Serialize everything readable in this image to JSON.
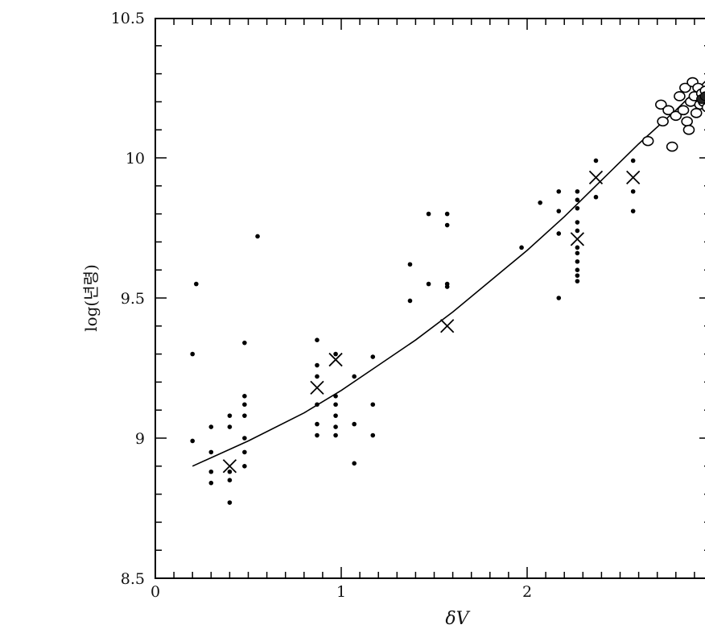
{
  "chart_data": {
    "type": "scatter",
    "title": "",
    "xlabel": "δV",
    "ylabel": "log(년령)",
    "xlim": [
      0,
      3
    ],
    "ylim": [
      8.5,
      10.5
    ],
    "x_ticks": [
      0,
      1,
      2
    ],
    "x_tick_labels": [
      "0",
      "1",
      "2"
    ],
    "y_ticks": [
      8.5,
      9,
      9.5,
      10,
      10.5
    ],
    "y_tick_labels": [
      "8.5",
      "9",
      "9.5",
      "10",
      "10.5"
    ],
    "x_minor_step": 0.1,
    "y_minor_step": 0.1,
    "grid": false,
    "series": [
      {
        "marker": "dot",
        "points": [
          [
            0.2,
            9.3
          ],
          [
            0.2,
            8.99
          ],
          [
            0.22,
            9.55
          ],
          [
            0.55,
            9.72
          ],
          [
            0.3,
            9.04
          ],
          [
            0.3,
            8.95
          ],
          [
            0.3,
            8.88
          ],
          [
            0.3,
            8.84
          ],
          [
            0.4,
            9.08
          ],
          [
            0.4,
            9.04
          ],
          [
            0.4,
            8.88
          ],
          [
            0.4,
            8.85
          ],
          [
            0.4,
            8.77
          ],
          [
            0.48,
            9.34
          ],
          [
            0.48,
            9.15
          ],
          [
            0.48,
            9.12
          ],
          [
            0.48,
            9.08
          ],
          [
            0.48,
            9.0
          ],
          [
            0.48,
            8.95
          ],
          [
            0.48,
            8.9
          ],
          [
            0.87,
            9.35
          ],
          [
            0.87,
            9.26
          ],
          [
            0.87,
            9.22
          ],
          [
            0.87,
            9.12
          ],
          [
            0.87,
            9.05
          ],
          [
            0.87,
            9.01
          ],
          [
            0.97,
            9.3
          ],
          [
            0.97,
            9.15
          ],
          [
            0.97,
            9.12
          ],
          [
            0.97,
            9.08
          ],
          [
            0.97,
            9.04
          ],
          [
            0.97,
            9.01
          ],
          [
            1.07,
            9.22
          ],
          [
            1.07,
            9.05
          ],
          [
            1.07,
            8.91
          ],
          [
            1.17,
            9.29
          ],
          [
            1.17,
            9.12
          ],
          [
            1.17,
            9.01
          ],
          [
            1.37,
            9.62
          ],
          [
            1.37,
            9.49
          ],
          [
            1.47,
            9.8
          ],
          [
            1.47,
            9.55
          ],
          [
            1.57,
            9.8
          ],
          [
            1.57,
            9.76
          ],
          [
            1.57,
            9.55
          ],
          [
            1.57,
            9.54
          ],
          [
            1.97,
            9.68
          ],
          [
            2.07,
            9.84
          ],
          [
            2.17,
            9.88
          ],
          [
            2.17,
            9.81
          ],
          [
            2.17,
            9.73
          ],
          [
            2.17,
            9.5
          ],
          [
            2.27,
            9.88
          ],
          [
            2.27,
            9.85
          ],
          [
            2.27,
            9.82
          ],
          [
            2.27,
            9.77
          ],
          [
            2.27,
            9.74
          ],
          [
            2.27,
            9.68
          ],
          [
            2.27,
            9.66
          ],
          [
            2.27,
            9.63
          ],
          [
            2.27,
            9.6
          ],
          [
            2.27,
            9.58
          ],
          [
            2.27,
            9.56
          ],
          [
            2.37,
            9.99
          ],
          [
            2.37,
            9.86
          ],
          [
            2.57,
            9.99
          ],
          [
            2.57,
            9.88
          ],
          [
            2.57,
            9.81
          ]
        ]
      },
      {
        "marker": "cross",
        "points": [
          [
            0.4,
            8.9
          ],
          [
            0.87,
            9.18
          ],
          [
            0.97,
            9.28
          ],
          [
            1.57,
            9.4
          ],
          [
            2.27,
            9.71
          ],
          [
            2.37,
            9.93
          ],
          [
            2.57,
            9.93
          ]
        ]
      },
      {
        "marker": "open-circle",
        "points": [
          [
            2.65,
            10.06
          ],
          [
            2.72,
            10.19
          ],
          [
            2.73,
            10.13
          ],
          [
            2.76,
            10.17
          ],
          [
            2.78,
            10.04
          ],
          [
            2.8,
            10.15
          ],
          [
            2.82,
            10.22
          ],
          [
            2.84,
            10.17
          ],
          [
            2.85,
            10.25
          ],
          [
            2.86,
            10.13
          ],
          [
            2.87,
            10.1
          ],
          [
            2.88,
            10.2
          ],
          [
            2.89,
            10.27
          ],
          [
            2.9,
            10.22
          ],
          [
            2.91,
            10.16
          ],
          [
            2.92,
            10.25
          ],
          [
            2.93,
            10.19
          ],
          [
            2.94,
            10.23
          ],
          [
            2.95,
            10.2
          ],
          [
            2.96,
            10.24
          ],
          [
            2.97,
            10.18
          ]
        ]
      },
      {
        "marker": "filled-circle",
        "points": [
          [
            2.94,
            10.21
          ],
          [
            2.96,
            10.22
          ]
        ]
      },
      {
        "marker": "line",
        "points": [
          [
            0.2,
            8.9
          ],
          [
            0.5,
            8.99
          ],
          [
            0.8,
            9.09
          ],
          [
            1.0,
            9.17
          ],
          [
            1.2,
            9.26
          ],
          [
            1.4,
            9.35
          ],
          [
            1.6,
            9.45
          ],
          [
            1.8,
            9.56
          ],
          [
            2.0,
            9.67
          ],
          [
            2.2,
            9.79
          ],
          [
            2.4,
            9.92
          ],
          [
            2.6,
            10.05
          ],
          [
            2.8,
            10.17
          ],
          [
            3.0,
            10.3
          ]
        ]
      }
    ]
  }
}
